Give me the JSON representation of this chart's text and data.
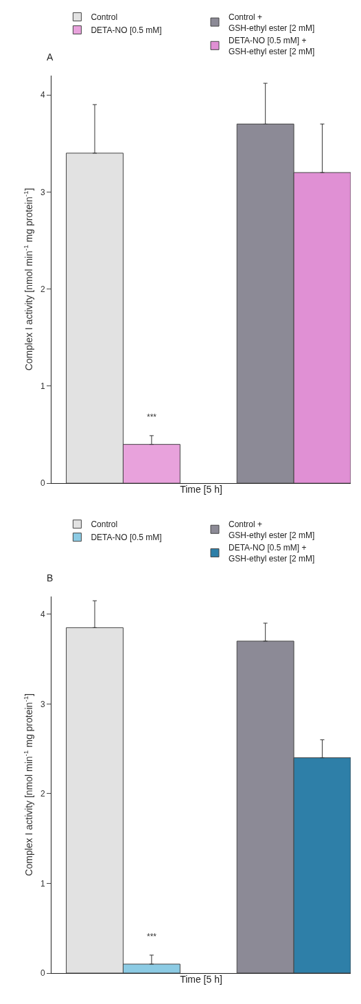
{
  "chart_data": [
    {
      "type": "bar",
      "title": "A",
      "xlabel": "Time [5 h]",
      "ylabel": "Complex I activity [nmol min$^{-1}$ mg protein$^{-1}$]",
      "categories": [
        null
      ],
      "ylim": [
        0,
        4.2
      ],
      "yticks": [
        0,
        1,
        2,
        3,
        4
      ],
      "legend": "top",
      "annotations": [
        "***"
      ],
      "series": [
        {
          "name": "Control",
          "color": "#e2e2e2",
          "values": [
            3.4
          ],
          "errors": [
            [
              3.4,
              3.9
            ]
          ]
        },
        {
          "name": "DETA-NO [0.5 mM]",
          "color": "#e8a2dc",
          "values": [
            0.4
          ],
          "errors": [
            [
              0.4,
              0.49
            ]
          ]
        },
        {
          "name": "Control +\nGSH-ethyl ester [2 mM]",
          "color": "#8c8a96",
          "values": [
            3.7
          ],
          "errors": [
            [
              3.7,
              4.12
            ]
          ]
        },
        {
          "name": "DETA-NO [0.5 mM] +\nGSH-ethyl ester [2 mM]",
          "color": "#e090d4",
          "values": [
            3.2
          ],
          "errors": [
            [
              3.2,
              3.7
            ]
          ]
        }
      ]
    },
    {
      "type": "bar",
      "title": "B",
      "xlabel": "Time [5 h]",
      "ylabel": "Complex I activity [nmol min$^{-1}$ mg protein$^{-1}$]",
      "categories": [
        null
      ],
      "ylim": [
        0,
        4.2
      ],
      "yticks": [
        0,
        1,
        2,
        3,
        4
      ],
      "legend": "top",
      "annotations": [
        "***"
      ],
      "series": [
        {
          "name": "Control",
          "color": "#e2e2e2",
          "values": [
            3.85
          ],
          "errors": [
            [
              3.85,
              4.15
            ]
          ]
        },
        {
          "name": "DETA-NO [0.5 mM]",
          "color": "#8ccbe4",
          "values": [
            0.1
          ],
          "errors": [
            [
              0.1,
              0.2
            ]
          ]
        },
        {
          "name": "Control +\nGSH-ethyl ester [2 mM]",
          "color": "#8c8a96",
          "values": [
            3.7
          ],
          "errors": [
            [
              3.7,
              3.9
            ]
          ]
        },
        {
          "name": "DETA-NO [0.5 mM] +\nGSH-ethyl ester [2 mM]",
          "color": "#2e7fa8",
          "values": [
            2.4
          ],
          "errors": [
            [
              2.4,
              2.6
            ]
          ]
        }
      ]
    }
  ]
}
